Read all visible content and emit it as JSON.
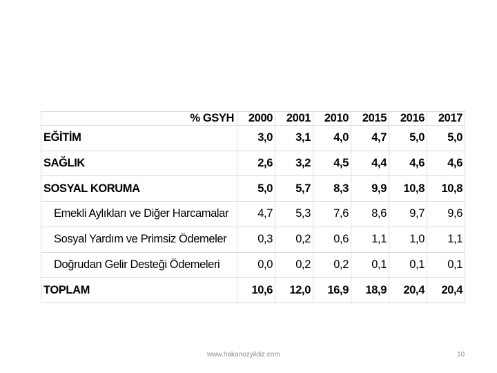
{
  "table": {
    "header": {
      "label": "% GSYH",
      "years": [
        "2000",
        "2001",
        "2010",
        "2015",
        "2016",
        "2017"
      ]
    },
    "rows": [
      {
        "label": "EĞİTİM",
        "values": [
          "3,0",
          "3,1",
          "4,0",
          "4,7",
          "5,0",
          "5,0"
        ]
      },
      {
        "label": "SAĞLIK",
        "values": [
          "2,6",
          "3,2",
          "4,5",
          "4,4",
          "4,6",
          "4,6"
        ]
      },
      {
        "label": "SOSYAL KORUMA",
        "values": [
          "5,0",
          "5,7",
          "8,3",
          "9,9",
          "10,8",
          "10,8"
        ]
      },
      {
        "label": "Emekli Aylıkları ve Diğer Harcamalar",
        "values": [
          "4,7",
          "5,3",
          "7,6",
          "8,6",
          "9,7",
          "9,6"
        ]
      },
      {
        "label": "Sosyal Yardım ve Primsiz Ödemeler",
        "values": [
          "0,3",
          "0,2",
          "0,6",
          "1,1",
          "1,0",
          "1,1"
        ]
      },
      {
        "label": "Doğrudan Gelir Desteği Ödemeleri",
        "values": [
          "0,0",
          "0,2",
          "0,2",
          "0,1",
          "0,1",
          "0,1"
        ]
      },
      {
        "label": "TOPLAM",
        "values": [
          "10,6",
          "12,0",
          "16,9",
          "18,9",
          "20,4",
          "20,4"
        ]
      }
    ]
  },
  "footer": {
    "url": "www.hakanozyildiz.com",
    "page_number": "10"
  }
}
